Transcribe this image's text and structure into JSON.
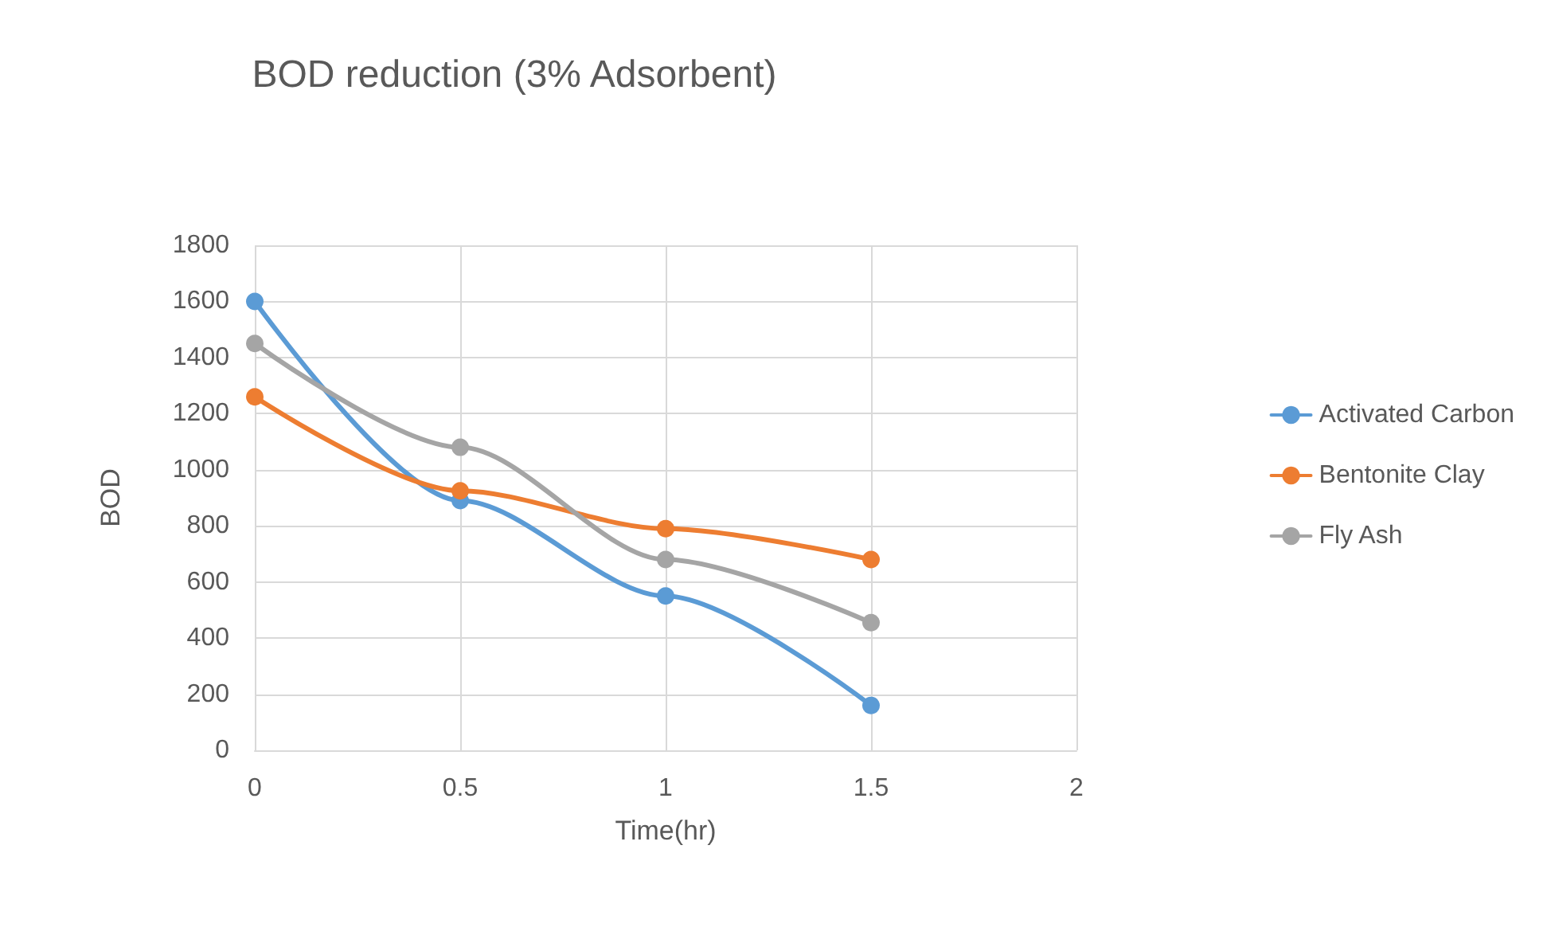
{
  "chart_data": {
    "type": "line",
    "title": "BOD reduction (3% Adsorbent)",
    "xlabel": "Time(hr)",
    "ylabel": "BOD",
    "x": [
      0,
      0.5,
      1,
      1.5
    ],
    "series": [
      {
        "name": "Activated Carbon",
        "color": "#5b9bd5",
        "values": [
          1600,
          890,
          550,
          160
        ]
      },
      {
        "name": "Bentonite Clay",
        "color": "#ed7d31",
        "values": [
          1260,
          925,
          790,
          680
        ]
      },
      {
        "name": "Fly Ash",
        "color": "#a5a5a5",
        "values": [
          1450,
          1080,
          680,
          455
        ]
      }
    ],
    "xlim": [
      0,
      2
    ],
    "xticks": [
      0,
      0.5,
      1,
      1.5,
      2
    ],
    "ylim": [
      0,
      1800
    ],
    "yticks": [
      0,
      200,
      400,
      600,
      800,
      1000,
      1200,
      1400,
      1600,
      1800
    ],
    "grid": true,
    "legend": "right",
    "marker": "circle"
  }
}
